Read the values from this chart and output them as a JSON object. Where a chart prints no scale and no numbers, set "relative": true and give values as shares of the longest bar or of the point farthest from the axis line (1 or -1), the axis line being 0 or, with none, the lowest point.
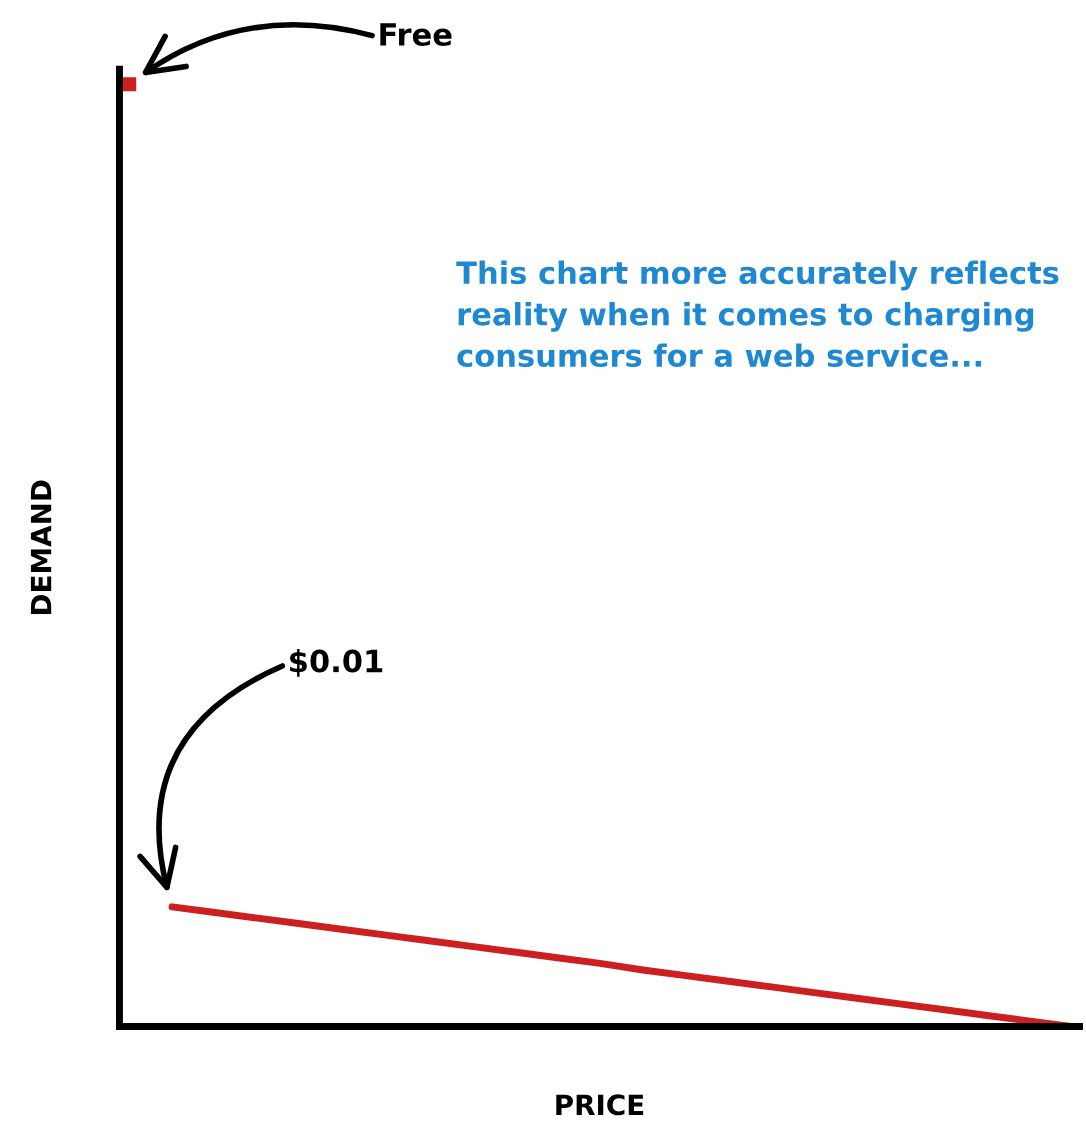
{
  "chart_data": {
    "type": "line",
    "relative": true,
    "xlabel": "PRICE",
    "ylabel": "DEMAND",
    "categories": [
      null,
      null,
      null,
      null,
      null,
      null,
      null,
      null,
      null,
      null,
      null,
      null,
      null,
      null,
      null,
      null,
      null,
      null,
      null,
      null,
      null,
      null,
      null
    ],
    "series": [
      {
        "color": "#cc1f1f",
        "marker": "square",
        "values": [
          1.0,
          null,
          null,
          null,
          null,
          null,
          null,
          null,
          null,
          null,
          null,
          null,
          null,
          null,
          null,
          null,
          null,
          null,
          null,
          null,
          null,
          null,
          null
        ]
      },
      {
        "color": "#cc1f1f",
        "values": [
          null,
          0.127,
          0.121,
          0.115,
          0.109,
          0.103,
          0.097,
          0.091,
          0.085,
          0.079,
          0.073,
          0.067,
          0.06,
          0.054,
          0.048,
          0.042,
          0.036,
          0.03,
          0.024,
          0.018,
          0.012,
          0.006,
          0.0
        ]
      }
    ],
    "annotations": [
      "Free",
      "$0.01",
      "This chart more accurately reflects reality when it comes to charging consumers for a web service..."
    ]
  }
}
